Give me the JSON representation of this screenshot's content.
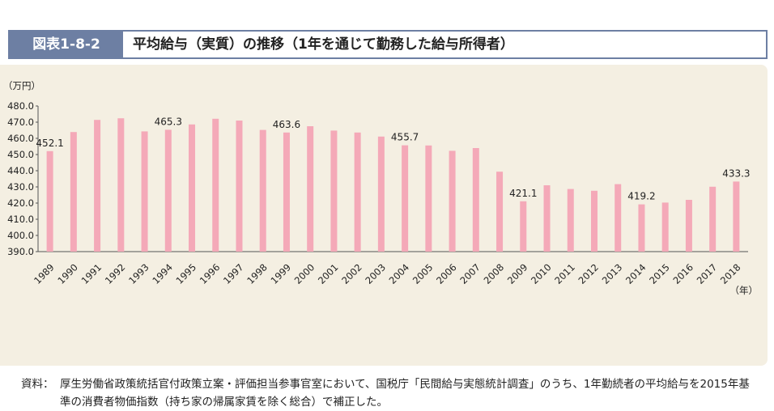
{
  "header": {
    "figure_label": "図表1-8-2",
    "title": "平均給与（実質）の推移（1年を通じて勤務した給与所得者）"
  },
  "caption": {
    "prefix": "資料：",
    "text": "厚生労働省政策統括官付政策立案・評価担当参事官室において、国税庁「民間給与実態統計調査」のうち、1年勤続者の平均給与を2015年基準の消費者物価指数（持ち家の帰属家賃を除く総合）で補正した。"
  },
  "chart_data": {
    "type": "bar",
    "ylabel": "（万円）",
    "xlabel": "（年）",
    "ylim": [
      390.0,
      480.0
    ],
    "yticks": [
      "390.0",
      "400.0",
      "410.0",
      "420.0",
      "430.0",
      "440.0",
      "450.0",
      "460.0",
      "470.0",
      "480.0"
    ],
    "bar_color": "#f4a9b8",
    "categories": [
      "1989",
      "1990",
      "1991",
      "1992",
      "1993",
      "1994",
      "1995",
      "1996",
      "1997",
      "1998",
      "1999",
      "2000",
      "2001",
      "2002",
      "2003",
      "2004",
      "2005",
      "2006",
      "2007",
      "2008",
      "2009",
      "2010",
      "2011",
      "2012",
      "2013",
      "2014",
      "2015",
      "2016",
      "2017",
      "2018"
    ],
    "values": [
      452.1,
      463.9,
      471.4,
      472.4,
      464.3,
      465.3,
      468.6,
      472.1,
      471.0,
      465.2,
      463.6,
      467.5,
      464.8,
      463.6,
      461.1,
      455.7,
      455.6,
      452.3,
      454.0,
      439.4,
      421.1,
      431.0,
      428.7,
      427.6,
      431.7,
      419.2,
      420.3,
      422.0,
      430.1,
      433.3
    ],
    "labels": [
      {
        "index": 0,
        "text": "452.1"
      },
      {
        "index": 5,
        "text": "465.3"
      },
      {
        "index": 10,
        "text": "463.6"
      },
      {
        "index": 15,
        "text": "455.7"
      },
      {
        "index": 20,
        "text": "421.1"
      },
      {
        "index": 25,
        "text": "419.2"
      },
      {
        "index": 29,
        "text": "433.3"
      }
    ]
  }
}
